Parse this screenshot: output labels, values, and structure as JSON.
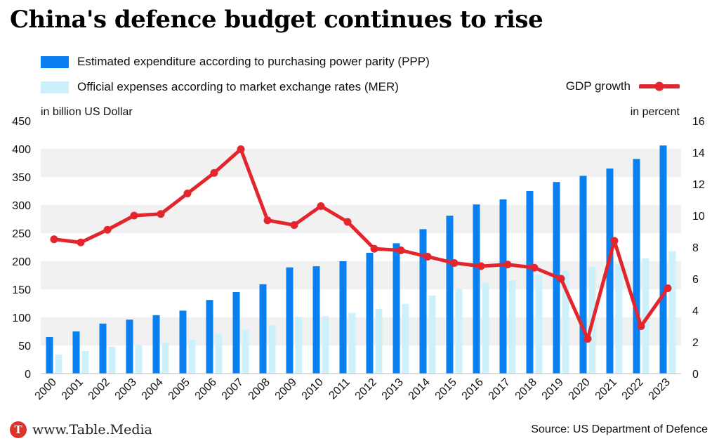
{
  "header": {
    "title": "China's defence budget continues to rise"
  },
  "legend": {
    "ppp_label": "Estimated expenditure according to purchasing power parity (PPP)",
    "mer_label": "Official expenses according to market exchange rates (MER)",
    "gdp_label": "GDP growth"
  },
  "colors": {
    "ppp": "#0a7ff0",
    "mer": "#cdf1fb",
    "gdp": "#e3262d",
    "band": "#f1f1f1"
  },
  "axes": {
    "left_title": "in billion US Dollar",
    "right_title": "in percent"
  },
  "footer": {
    "brand": "www.Table.Media",
    "logo_letter": "T",
    "source": "Source: US Department of Defence"
  },
  "chart_data": {
    "type": "bar",
    "categories": [
      "2000",
      "2001",
      "2002",
      "2003",
      "2004",
      "2005",
      "2006",
      "2007",
      "2008",
      "2009",
      "2010",
      "2011",
      "2012",
      "2013",
      "2014",
      "2015",
      "2016",
      "2017",
      "2018",
      "2019",
      "2020",
      "2021",
      "2022",
      "2023"
    ],
    "series": [
      {
        "name": "Estimated expenditure according to purchasing power parity (PPP)",
        "axis": "left",
        "values": [
          65,
          75,
          89,
          96,
          104,
          112,
          131,
          145,
          159,
          189,
          191,
          200,
          215,
          232,
          257,
          281,
          301,
          310,
          325,
          341,
          352,
          365,
          382,
          406
        ]
      },
      {
        "name": "Official expenses according to market exchange rates (MER)",
        "axis": "left",
        "values": [
          34,
          40,
          48,
          51,
          55,
          60,
          71,
          78,
          86,
          101,
          102,
          108,
          115,
          124,
          139,
          151,
          162,
          166,
          175,
          183,
          190,
          195,
          205,
          218
        ]
      },
      {
        "name": "GDP growth",
        "type": "line",
        "axis": "right",
        "values": [
          8.5,
          8.3,
          9.1,
          10.0,
          10.1,
          11.4,
          12.7,
          14.2,
          9.7,
          9.4,
          10.6,
          9.6,
          7.9,
          7.8,
          7.4,
          7.0,
          6.8,
          6.9,
          6.7,
          6.0,
          2.2,
          8.4,
          3.0,
          5.4
        ]
      }
    ],
    "ylim": [
      0,
      450
    ],
    "yticks": [
      0,
      50,
      100,
      150,
      200,
      250,
      300,
      350,
      400,
      450
    ],
    "y2lim": [
      0,
      16
    ],
    "y2ticks": [
      0,
      2,
      4,
      6,
      8,
      10,
      12,
      14,
      16
    ],
    "grid": true
  }
}
